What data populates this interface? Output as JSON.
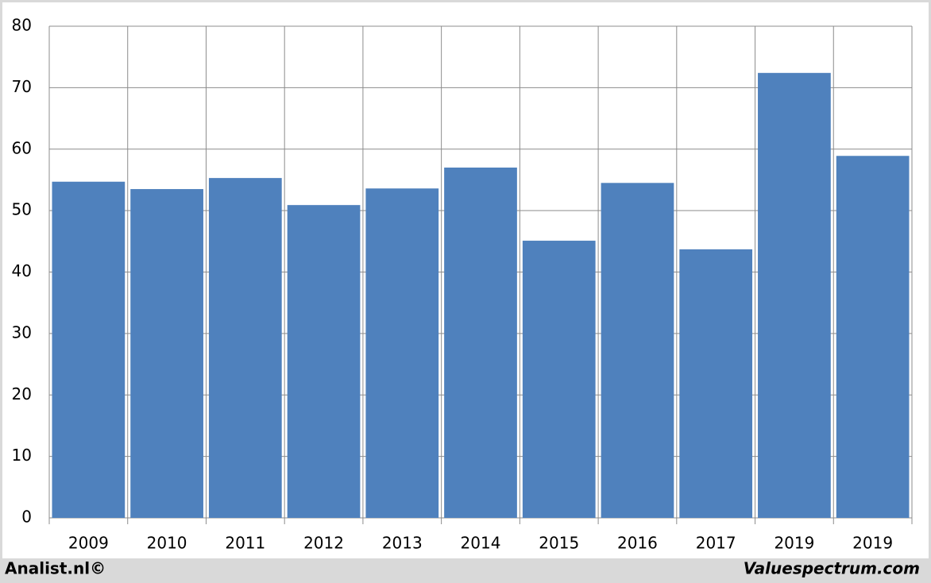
{
  "chart_data": {
    "type": "bar",
    "categories": [
      "2009",
      "2010",
      "2011",
      "2012",
      "2013",
      "2014",
      "2015",
      "2016",
      "2017",
      "2019",
      "2019"
    ],
    "values": [
      54.7,
      53.5,
      55.3,
      50.9,
      53.6,
      57.0,
      45.1,
      54.5,
      43.7,
      72.4,
      58.9
    ],
    "color": "#4f81bd",
    "ylim": [
      0,
      80
    ],
    "yticks": [
      0,
      10,
      20,
      30,
      40,
      50,
      60,
      70,
      80
    ],
    "grid": true
  },
  "footer": {
    "left": "Analist.nl©",
    "right": "Valuespectrum.com"
  }
}
